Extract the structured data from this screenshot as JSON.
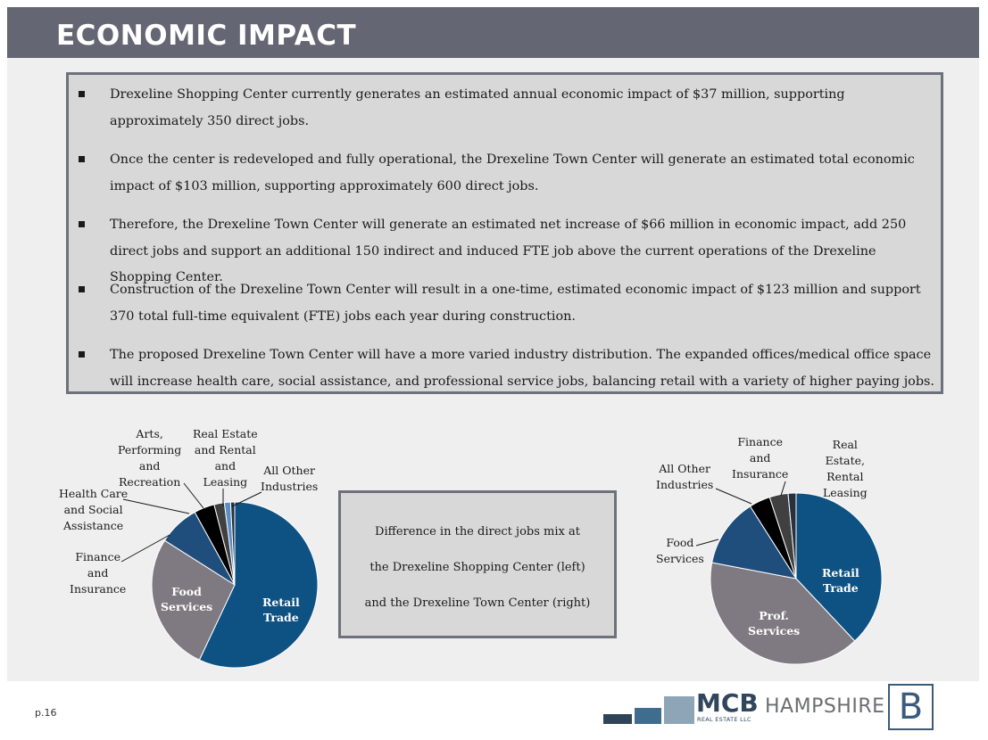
{
  "header": {
    "title": "ECONOMIC IMPACT"
  },
  "bullets": [
    {
      "text": "Drexeline Shopping Center currently generates an estimated annual economic impact of $37 million, supporting approximately 350 direct jobs."
    },
    {
      "text": "Once the center is redeveloped and fully operational, the Drexeline Town Center will generate an estimated total economic impact of $103 million,  supporting approximately 600 direct jobs."
    },
    {
      "text": "Therefore, the Drexeline Town Center will generate an estimated net increase of $66 million in economic impact, add 250 direct jobs and support an additional 150 indirect and induced FTE job above the current operations of the Drexeline Shopping Center."
    },
    {
      "text": "Construction of the Drexeline Town Center will result in a one-time, estimated economic impact of $123 million and support 370 total full-time equivalent (FTE) jobs each year during construction."
    },
    {
      "text": "The proposed Drexeline Town Center will have a more varied industry distribution. The expanded offices/medical office space will increase health care, social assistance, and professional service jobs, balancing retail with a variety of higher paying jobs."
    }
  ],
  "center_box": {
    "line1": "Difference in the direct jobs mix at",
    "line2": "the Drexeline Shopping Center (left)",
    "line3": "and the Drexeline Town Center (right)"
  },
  "chart_data": [
    {
      "type": "pie",
      "title": "",
      "slices": [
        {
          "label": "Retail Trade",
          "value": 57,
          "color": "#0e5283"
        },
        {
          "label": "Food Services",
          "value": 27,
          "color": "#7f7a81"
        },
        {
          "label": "Finance and Insurance",
          "value": 8,
          "color": "#1f4d7c"
        },
        {
          "label": "Health Care and Social Assistance",
          "value": 4,
          "color": "#000000"
        },
        {
          "label": "Arts, Performing and Recreation",
          "value": 2,
          "color": "#404040"
        },
        {
          "label": "Real Estate and Rental and Leasing",
          "value": 1.2,
          "color": "#5a8fc4"
        },
        {
          "label": "All Other Industries",
          "value": 0.8,
          "color": "#27313f"
        }
      ]
    },
    {
      "type": "pie",
      "title": "",
      "slices": [
        {
          "label": "Retail Trade",
          "value": 38,
          "color": "#0e5283"
        },
        {
          "label": "Prof. Services",
          "value": 40,
          "color": "#7f7a81"
        },
        {
          "label": "Food Services",
          "value": 13,
          "color": "#1f4d7c"
        },
        {
          "label": "All Other Industries",
          "value": 4,
          "color": "#000000"
        },
        {
          "label": "Finance and Insurance",
          "value": 3.5,
          "color": "#404040"
        },
        {
          "label": "Real Estate, Rental Leasing",
          "value": 1.5,
          "color": "#27313f"
        }
      ]
    }
  ],
  "pie_labels": {
    "left": {
      "arts": "Arts,\nPerforming\nand\nRecreation",
      "real_estate": "Real Estate\nand Rental\nand\nLeasing",
      "all_other": "All Other\nIndustries",
      "health": "Health Care\nand Social\nAssistance",
      "finance": "Finance\nand\nInsurance",
      "food": "Food\nServices",
      "retail": "Retail\nTrade"
    },
    "right": {
      "finance": "Finance\nand\nInsurance",
      "real_estate": "Real\nEstate,\nRental\nLeasing",
      "all_other": "All Other\nIndustries",
      "food": "Food\nServices",
      "retail": "Retail\nTrade",
      "prof": "Prof.\nServices"
    }
  },
  "footer": {
    "page": "p.16",
    "mcb": "MCB",
    "mcb_sub": "REAL ESTATE LLC",
    "hampshire": "HAMPSHIRE",
    "b_logo": "B"
  }
}
